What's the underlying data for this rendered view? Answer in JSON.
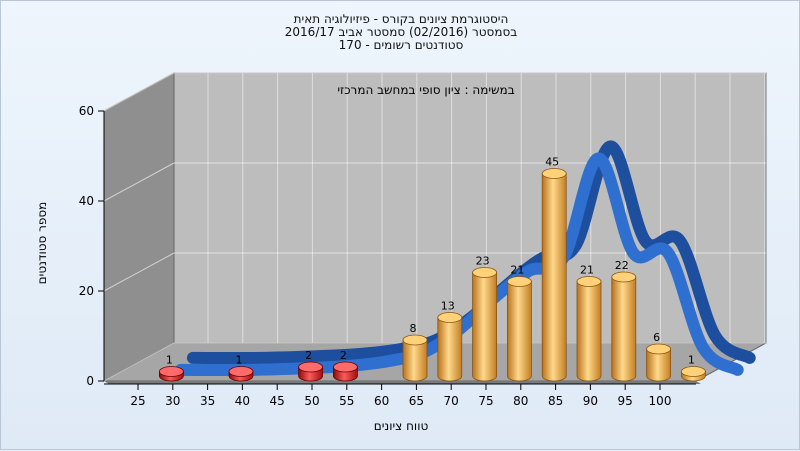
{
  "chart_data": {
    "type": "bar",
    "title_lines": [
      "היסטוגרמת ציונים בקורס - פיזיולוגיה תאית",
      "בסמסטר  (02/2016)  סמסטר אביב 2016/17",
      "סטודנטים רשומים - 170"
    ],
    "subtitle": "במשימה : ציון סופי במחשב המרכזי",
    "xlabel": "טווח ציונים",
    "ylabel": "מספר סטודנטים",
    "ylim": [
      0,
      60
    ],
    "yticks": [
      0,
      20,
      40,
      60
    ],
    "categories": [
      "25",
      "30",
      "35",
      "40",
      "45",
      "50",
      "55",
      "60",
      "65",
      "70",
      "75",
      "80",
      "85",
      "90",
      "95",
      "100"
    ],
    "bars": [
      {
        "x": 27.5,
        "value": 1,
        "label": "1",
        "group": "fail"
      },
      {
        "x": 37.5,
        "value": 1,
        "label": "1",
        "group": "fail"
      },
      {
        "x": 47.5,
        "value": 2,
        "label": "2",
        "group": "fail"
      },
      {
        "x": 52.5,
        "value": 2,
        "label": "2",
        "group": "fail"
      },
      {
        "x": 62.5,
        "value": 8,
        "label": "8",
        "group": "pass"
      },
      {
        "x": 67.5,
        "value": 13,
        "label": "13",
        "group": "pass"
      },
      {
        "x": 72.5,
        "value": 23,
        "label": "23",
        "group": "pass"
      },
      {
        "x": 77.5,
        "value": 21,
        "label": "21",
        "group": "pass"
      },
      {
        "x": 82.5,
        "value": 45,
        "label": "45",
        "group": "pass"
      },
      {
        "x": 87.5,
        "value": 21,
        "label": "21",
        "group": "pass"
      },
      {
        "x": 92.5,
        "value": 22,
        "label": "22",
        "group": "pass"
      },
      {
        "x": 97.5,
        "value": 6,
        "label": "6",
        "group": "pass"
      },
      {
        "x": 102.5,
        "value": 1,
        "label": "1",
        "group": "pass"
      }
    ],
    "curve": {
      "x": [
        27.5,
        37.5,
        47.5,
        52.5,
        57.5,
        62.5,
        67.5,
        72.5,
        77.5,
        82.5,
        87.5,
        92.5,
        97.5,
        102.5,
        107.5
      ],
      "y": [
        0,
        0,
        0.5,
        1,
        2,
        4,
        9,
        16,
        22,
        25,
        47,
        26,
        26,
        5,
        0
      ]
    },
    "colors": {
      "fail_bar": "#d01818",
      "pass_bar": "#e2a040",
      "curve": "#2f6fcf",
      "back_wall": "#bdbdbd",
      "floor": "#a6a6a6",
      "side_wall": "#8f8f8f"
    },
    "grid": true
  }
}
